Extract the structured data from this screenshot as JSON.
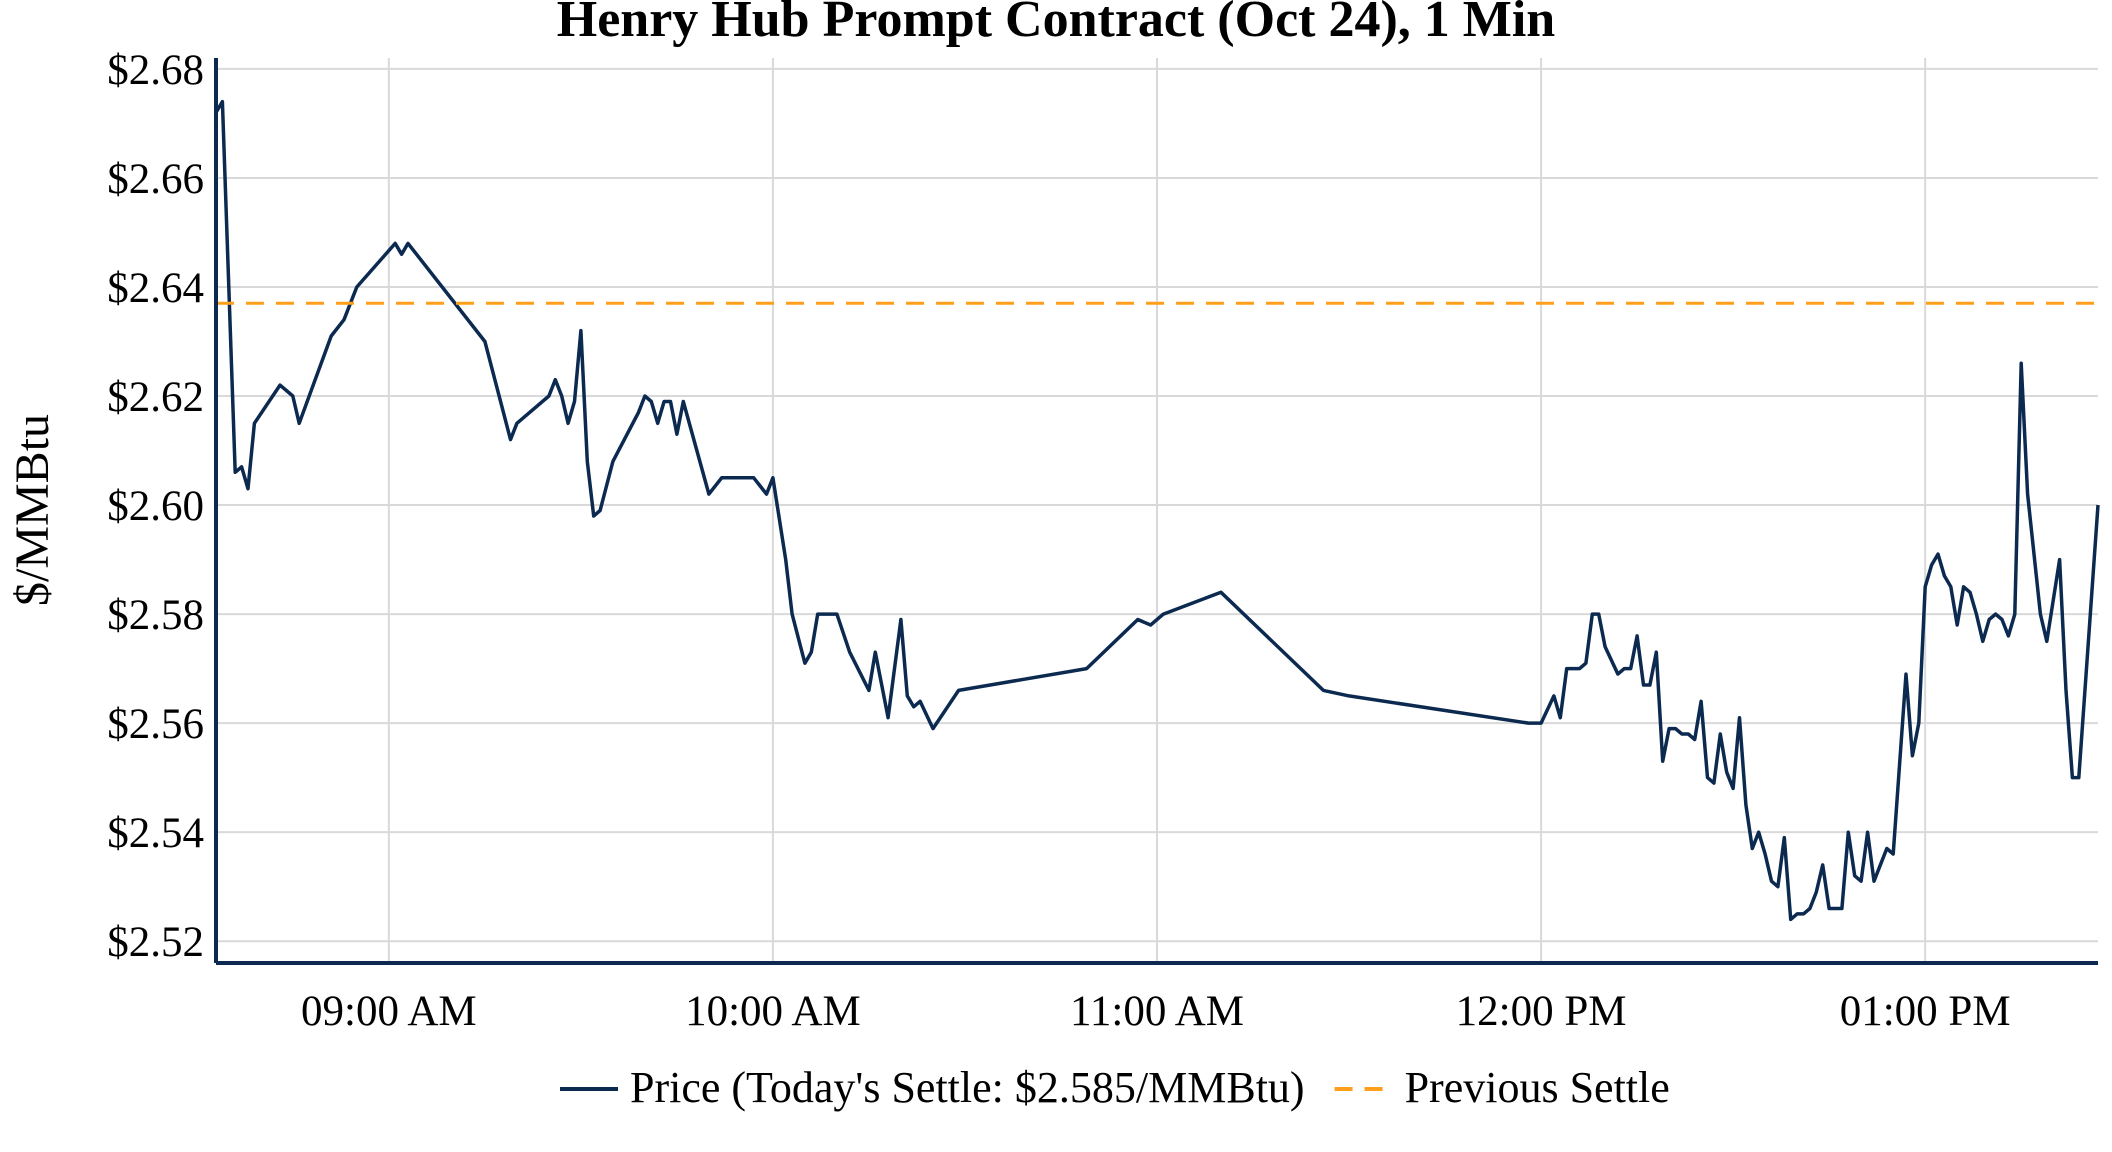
{
  "chart_data": {
    "type": "line",
    "title": "Henry Hub Prompt Contract (Oct 24), 1 Min",
    "xlabel": "",
    "ylabel": "$/MMBtu",
    "x_unit": "time of day",
    "xlim": [
      "08:33",
      "13:27"
    ],
    "ylim": [
      2.516,
      2.682
    ],
    "y_ticks": [
      "$2.52",
      "$2.54",
      "$2.56",
      "$2.58",
      "$2.60",
      "$2.62",
      "$2.64",
      "$2.66",
      "$2.68"
    ],
    "y_tick_values": [
      2.52,
      2.54,
      2.56,
      2.58,
      2.6,
      2.62,
      2.64,
      2.66,
      2.68
    ],
    "x_ticks": [
      "09:00 AM",
      "10:00 AM",
      "11:00 AM",
      "12:00 PM",
      "01:00 PM"
    ],
    "x_tick_values": [
      "09:00",
      "10:00",
      "11:00",
      "12:00",
      "13:00"
    ],
    "grid": true,
    "legend_position": "bottom",
    "series": [
      {
        "name": "Price (Today's Settle: $2.585/MMBtu)",
        "color": "#0c2a50",
        "style": "solid",
        "points": [
          [
            "08:33",
            2.672
          ],
          [
            "08:34",
            2.674
          ],
          [
            "08:35",
            2.64
          ],
          [
            "08:36",
            2.606
          ],
          [
            "08:37",
            2.607
          ],
          [
            "08:38",
            2.603
          ],
          [
            "08:39",
            2.615
          ],
          [
            "08:43",
            2.622
          ],
          [
            "08:45",
            2.62
          ],
          [
            "08:46",
            2.615
          ],
          [
            "08:51",
            2.631
          ],
          [
            "08:53",
            2.634
          ],
          [
            "08:55",
            2.64
          ],
          [
            "09:01",
            2.648
          ],
          [
            "09:02",
            2.646
          ],
          [
            "09:03",
            2.648
          ],
          [
            "09:15",
            2.63
          ],
          [
            "09:19",
            2.612
          ],
          [
            "09:20",
            2.615
          ],
          [
            "09:25",
            2.62
          ],
          [
            "09:26",
            2.623
          ],
          [
            "09:27",
            2.62
          ],
          [
            "09:28",
            2.615
          ],
          [
            "09:29",
            2.619
          ],
          [
            "09:30",
            2.632
          ],
          [
            "09:31",
            2.608
          ],
          [
            "09:32",
            2.598
          ],
          [
            "09:33",
            2.599
          ],
          [
            "09:35",
            2.608
          ],
          [
            "09:39",
            2.617
          ],
          [
            "09:40",
            2.62
          ],
          [
            "09:41",
            2.619
          ],
          [
            "09:42",
            2.615
          ],
          [
            "09:43",
            2.619
          ],
          [
            "09:44",
            2.619
          ],
          [
            "09:45",
            2.613
          ],
          [
            "09:46",
            2.619
          ],
          [
            "09:50",
            2.602
          ],
          [
            "09:52",
            2.605
          ],
          [
            "09:57",
            2.605
          ],
          [
            "09:59",
            2.602
          ],
          [
            "10:00",
            2.605
          ],
          [
            "10:02",
            2.59
          ],
          [
            "10:03",
            2.58
          ],
          [
            "10:05",
            2.571
          ],
          [
            "10:06",
            2.573
          ],
          [
            "10:07",
            2.58
          ],
          [
            "10:10",
            2.58
          ],
          [
            "10:12",
            2.573
          ],
          [
            "10:15",
            2.566
          ],
          [
            "10:16",
            2.573
          ],
          [
            "10:18",
            2.561
          ],
          [
            "10:20",
            2.579
          ],
          [
            "10:21",
            2.565
          ],
          [
            "10:22",
            2.563
          ],
          [
            "10:23",
            2.564
          ],
          [
            "10:25",
            2.559
          ],
          [
            "10:29",
            2.566
          ],
          [
            "10:49",
            2.57
          ],
          [
            "10:57",
            2.579
          ],
          [
            "10:59",
            2.578
          ],
          [
            "11:01",
            2.58
          ],
          [
            "11:10",
            2.584
          ],
          [
            "11:26",
            2.566
          ],
          [
            "11:30",
            2.565
          ],
          [
            "11:58",
            2.56
          ],
          [
            "12:00",
            2.56
          ],
          [
            "12:02",
            2.565
          ],
          [
            "12:03",
            2.561
          ],
          [
            "12:04",
            2.57
          ],
          [
            "12:06",
            2.57
          ],
          [
            "12:07",
            2.571
          ],
          [
            "12:08",
            2.58
          ],
          [
            "12:09",
            2.58
          ],
          [
            "12:10",
            2.574
          ],
          [
            "12:12",
            2.569
          ],
          [
            "12:13",
            2.57
          ],
          [
            "12:14",
            2.57
          ],
          [
            "12:15",
            2.576
          ],
          [
            "12:16",
            2.567
          ],
          [
            "12:17",
            2.567
          ],
          [
            "12:18",
            2.573
          ],
          [
            "12:19",
            2.553
          ],
          [
            "12:20",
            2.559
          ],
          [
            "12:21",
            2.559
          ],
          [
            "12:22",
            2.558
          ],
          [
            "12:23",
            2.558
          ],
          [
            "12:24",
            2.557
          ],
          [
            "12:25",
            2.564
          ],
          [
            "12:26",
            2.55
          ],
          [
            "12:27",
            2.549
          ],
          [
            "12:28",
            2.558
          ],
          [
            "12:29",
            2.551
          ],
          [
            "12:30",
            2.548
          ],
          [
            "12:31",
            2.561
          ],
          [
            "12:32",
            2.545
          ],
          [
            "12:33",
            2.537
          ],
          [
            "12:34",
            2.54
          ],
          [
            "12:35",
            2.536
          ],
          [
            "12:36",
            2.531
          ],
          [
            "12:37",
            2.53
          ],
          [
            "12:38",
            2.539
          ],
          [
            "12:39",
            2.524
          ],
          [
            "12:40",
            2.525
          ],
          [
            "12:41",
            2.525
          ],
          [
            "12:42",
            2.526
          ],
          [
            "12:43",
            2.529
          ],
          [
            "12:44",
            2.534
          ],
          [
            "12:45",
            2.526
          ],
          [
            "12:47",
            2.526
          ],
          [
            "12:48",
            2.54
          ],
          [
            "12:49",
            2.532
          ],
          [
            "12:50",
            2.531
          ],
          [
            "12:51",
            2.54
          ],
          [
            "12:52",
            2.531
          ],
          [
            "12:54",
            2.537
          ],
          [
            "12:55",
            2.536
          ],
          [
            "12:57",
            2.569
          ],
          [
            "12:58",
            2.554
          ],
          [
            "12:59",
            2.56
          ],
          [
            "13:00",
            2.585
          ],
          [
            "13:01",
            2.589
          ],
          [
            "13:02",
            2.591
          ],
          [
            "13:03",
            2.587
          ],
          [
            "13:04",
            2.585
          ],
          [
            "13:05",
            2.578
          ],
          [
            "13:06",
            2.585
          ],
          [
            "13:07",
            2.584
          ],
          [
            "13:08",
            2.58
          ],
          [
            "13:09",
            2.575
          ],
          [
            "13:10",
            2.579
          ],
          [
            "13:11",
            2.58
          ],
          [
            "13:12",
            2.579
          ],
          [
            "13:13",
            2.576
          ],
          [
            "13:14",
            2.58
          ],
          [
            "13:15",
            2.626
          ],
          [
            "13:16",
            2.602
          ],
          [
            "13:18",
            2.58
          ],
          [
            "13:19",
            2.575
          ],
          [
            "13:21",
            2.59
          ],
          [
            "13:22",
            2.566
          ],
          [
            "13:23",
            2.55
          ],
          [
            "13:24",
            2.55
          ],
          [
            "13:27",
            2.6
          ]
        ]
      },
      {
        "name": "Previous Settle",
        "color": "#ff9f1c",
        "style": "dashed",
        "points": [
          [
            "08:33",
            2.637
          ],
          [
            "13:27",
            2.637
          ]
        ]
      }
    ]
  }
}
